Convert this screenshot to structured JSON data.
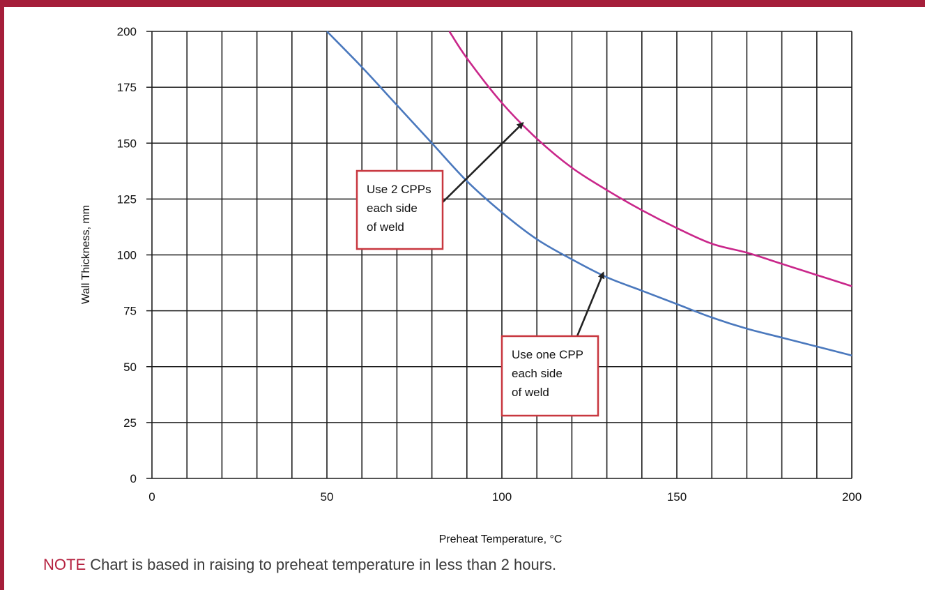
{
  "chart_data": {
    "type": "line",
    "title": "",
    "xlabel": "Preheat Temperature, °C",
    "ylabel": "Wall Thickness, mm",
    "xlim": [
      0,
      200
    ],
    "ylim": [
      0,
      200
    ],
    "x_ticks": [
      0,
      50,
      100,
      150,
      200
    ],
    "y_ticks": [
      0,
      25,
      50,
      75,
      100,
      125,
      150,
      175,
      200
    ],
    "grid": true,
    "grid_x_step": 10,
    "grid_y_step": 25,
    "series": [
      {
        "color": "#4a78bd",
        "points": [
          [
            50,
            200
          ],
          [
            60,
            184
          ],
          [
            70,
            167
          ],
          [
            80,
            150
          ],
          [
            90,
            133
          ],
          [
            100,
            119
          ],
          [
            110,
            107
          ],
          [
            120,
            98
          ],
          [
            130,
            90
          ],
          [
            140,
            84
          ],
          [
            150,
            78
          ],
          [
            160,
            72
          ],
          [
            170,
            67
          ],
          [
            180,
            63
          ],
          [
            190,
            59
          ],
          [
            200,
            55
          ]
        ]
      },
      {
        "color": "#c9268a",
        "points": [
          [
            85,
            200
          ],
          [
            90,
            188
          ],
          [
            100,
            168
          ],
          [
            110,
            152
          ],
          [
            120,
            139
          ],
          [
            130,
            129
          ],
          [
            140,
            120
          ],
          [
            150,
            112
          ],
          [
            160,
            105
          ],
          [
            170,
            101
          ],
          [
            180,
            96
          ],
          [
            190,
            91
          ],
          [
            200,
            86
          ]
        ]
      }
    ],
    "annotations": [
      {
        "lines": [
          "Use 2 CPPs",
          "each side",
          "of weld"
        ],
        "arrow_to": [
          106,
          159
        ],
        "border_color": "#c8373f"
      },
      {
        "lines": [
          "Use one CPP",
          "each side",
          "of weld"
        ],
        "arrow_to": [
          129,
          92
        ],
        "border_color": "#c8373f"
      }
    ]
  },
  "note": {
    "label": "NOTE",
    "text": " Chart is based in raising to preheat temperature in less than 2 hours."
  }
}
